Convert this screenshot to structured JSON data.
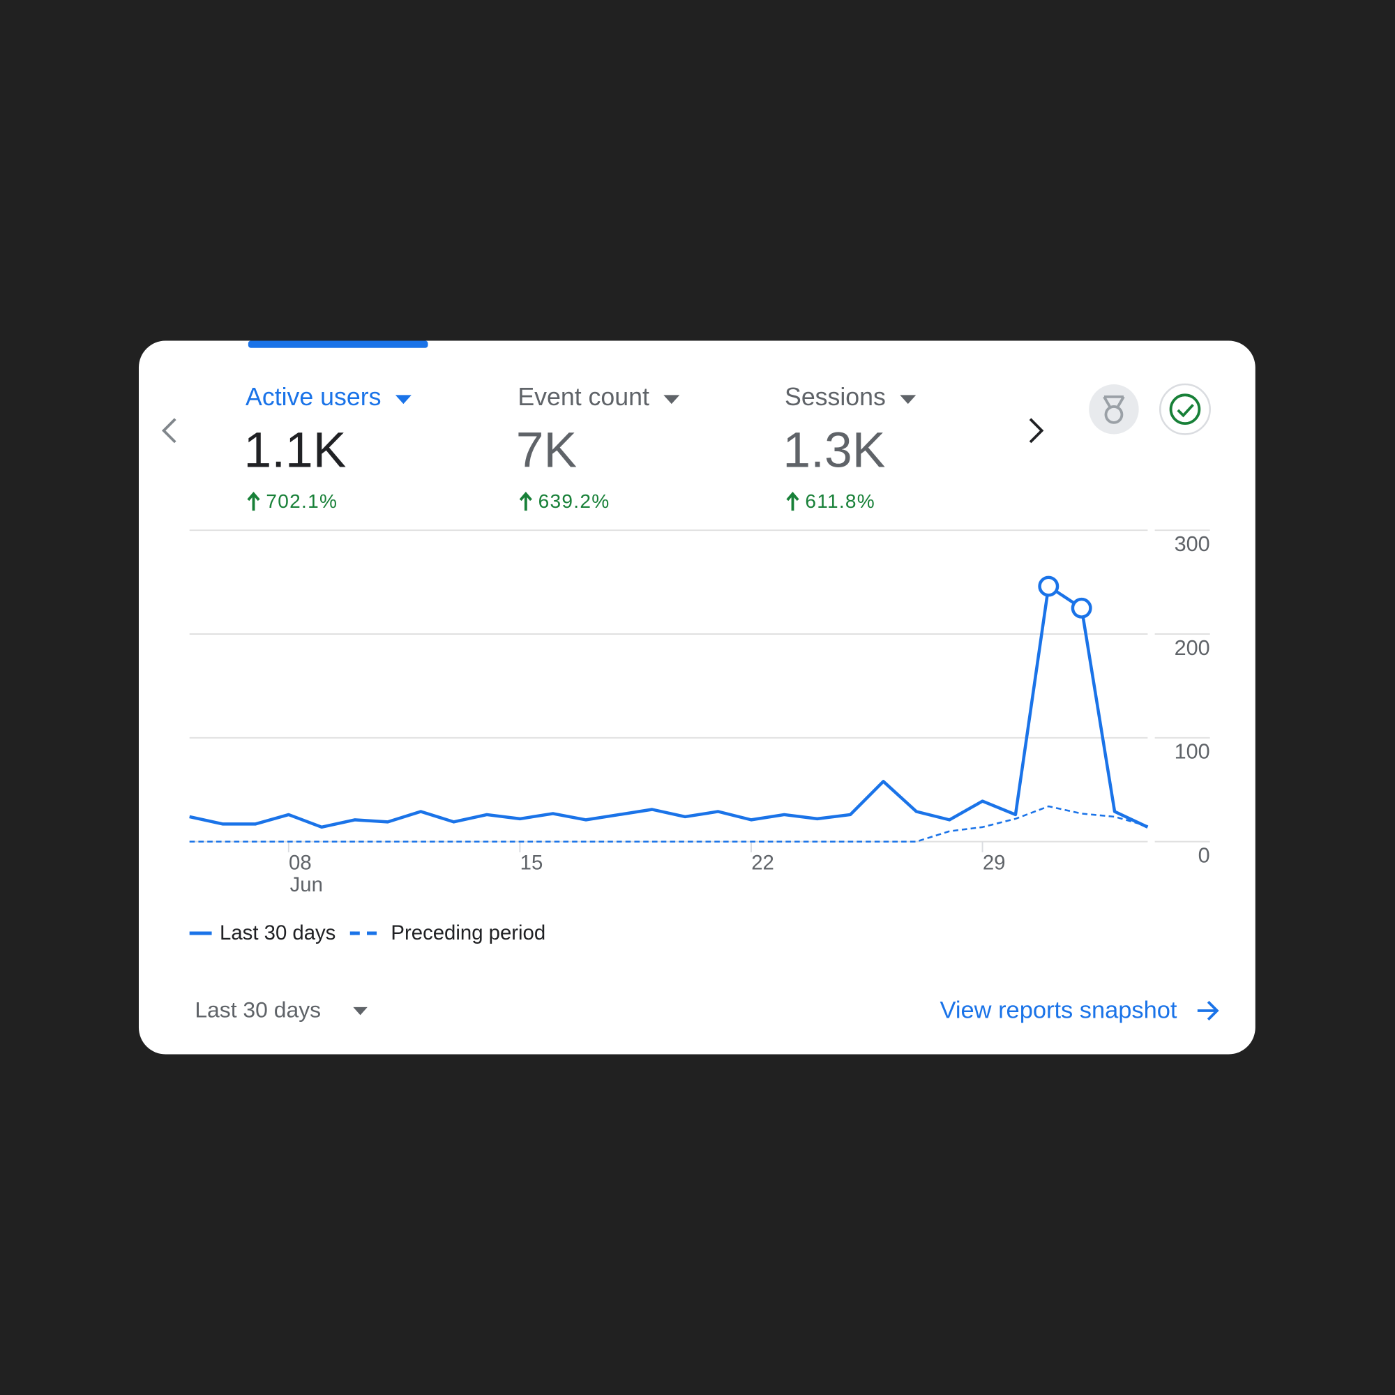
{
  "metrics": [
    {
      "label": "Active users",
      "value": "1.1K",
      "change": "702.1%"
    },
    {
      "label": "Event count",
      "value": "7K",
      "change": "639.2%"
    },
    {
      "label": "Sessions",
      "value": "1.3K",
      "change": "611.8%"
    }
  ],
  "chart_data": {
    "type": "line",
    "categories": [
      null,
      null,
      null,
      "08",
      null,
      null,
      null,
      null,
      null,
      null,
      "15",
      null,
      null,
      null,
      null,
      null,
      null,
      "22",
      null,
      null,
      null,
      null,
      null,
      null,
      "29",
      null,
      null,
      null,
      null,
      null
    ],
    "month_label": "Jun",
    "series": [
      {
        "name": "Last 30 days",
        "color": "#1a73e8",
        "dashed": false,
        "highlighted": [
          26,
          27
        ],
        "values": [
          24,
          17,
          17,
          26,
          14,
          21,
          19,
          29,
          19,
          26,
          22,
          27,
          21,
          26,
          31,
          24,
          29,
          21,
          26,
          22,
          26,
          58,
          29,
          21,
          39,
          26,
          246,
          225,
          29,
          14
        ]
      },
      {
        "name": "Preceding period",
        "color": "#1a73e8",
        "dashed": true,
        "values": [
          0,
          0,
          0,
          0,
          0,
          0,
          0,
          0,
          0,
          0,
          0,
          0,
          0,
          0,
          0,
          0,
          0,
          0,
          0,
          0,
          0,
          0,
          0,
          10,
          14,
          22,
          34,
          27,
          24,
          15
        ]
      }
    ],
    "ylim": [
      0,
      300
    ],
    "yticks": [
      0,
      100,
      200,
      300
    ],
    "grid": true,
    "legend": "bottom-left"
  },
  "footer": {
    "date_range": "Last 30 days",
    "link": "View reports snapshot"
  }
}
